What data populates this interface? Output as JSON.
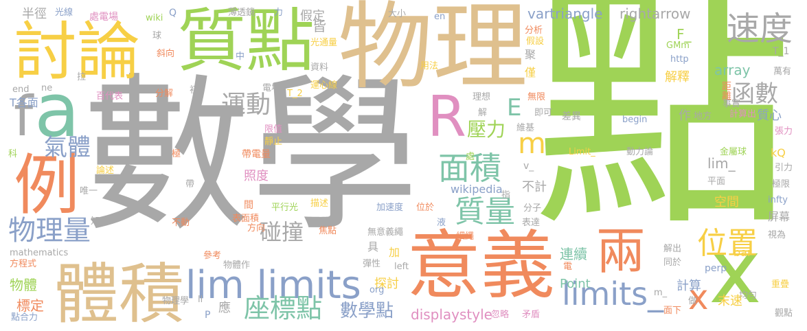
{
  "words": [
    {
      "text": "點",
      "color": "#9fd356"
    },
    {
      "text": "數學",
      "color": "#a8a8a8"
    },
    {
      "text": "物理",
      "color": "#dfc08e"
    },
    {
      "text": "質點",
      "color": "#9fd356"
    },
    {
      "text": "討論",
      "color": "#f7cf45"
    },
    {
      "text": "意義",
      "color": "#f08a5d"
    },
    {
      "text": "體積",
      "color": "#dfc08e"
    },
    {
      "text": "lim limits",
      "color": "#8aa0c8"
    },
    {
      "text": "例",
      "color": "#f08a5d"
    },
    {
      "text": "a",
      "color": "#7ec4a8"
    },
    {
      "text": "f",
      "color": "#a8a8a8"
    },
    {
      "text": "R",
      "color": "#e08fc0"
    },
    {
      "text": "x",
      "color": "#9fd356"
    },
    {
      "text": "兩",
      "color": "#f08a5d"
    },
    {
      "text": "速度",
      "color": "#a8a8a8"
    },
    {
      "text": "limits_",
      "color": "#8aa0c8"
    },
    {
      "text": "位置",
      "color": "#f7cf45"
    },
    {
      "text": "座標點",
      "color": "#7ec4a8"
    },
    {
      "text": "物理量",
      "color": "#8aa0c8"
    },
    {
      "text": "面積",
      "color": "#7ec4a8"
    },
    {
      "text": "質量",
      "color": "#7ec4a8"
    },
    {
      "text": "函數",
      "color": "#a8a8a8"
    },
    {
      "text": "運動",
      "color": "#a8a8a8"
    },
    {
      "text": "氣體",
      "color": "#8aa0c8"
    },
    {
      "text": "m",
      "color": "#f7cf45"
    },
    {
      "text": "E",
      "color": "#7ec4a8"
    },
    {
      "text": "x",
      "color": "#f08a5d"
    },
    {
      "text": "碰撞",
      "color": "#a8a8a8"
    },
    {
      "text": "壓力",
      "color": "#9fd356"
    },
    {
      "text": "數學點",
      "color": "#8aa0c8"
    },
    {
      "text": "displaystyle",
      "color": "#e08fc0"
    },
    {
      "text": "vartriangle",
      "color": "#8aa0c8"
    },
    {
      "text": "rightarrow",
      "color": "#a8a8a8"
    },
    {
      "text": "array",
      "color": "#7ec4a8"
    },
    {
      "text": "物體",
      "color": "#9fd356"
    },
    {
      "text": "標定",
      "color": "#f08a5d"
    },
    {
      "text": "連續",
      "color": "#7ec4a8"
    },
    {
      "text": "Point",
      "color": "#7ec4a8"
    },
    {
      "text": "假定",
      "color": "#a8a8a8"
    },
    {
      "text": "解釋",
      "color": "#f7cf45"
    },
    {
      "text": "空間",
      "color": "#f7cf45"
    },
    {
      "text": "照度",
      "color": "#e08fc0"
    },
    {
      "text": "計算",
      "color": "#8aa0c8"
    },
    {
      "text": "不計",
      "color": "#a8a8a8"
    },
    {
      "text": "wikipedia",
      "color": "#8aa0c8"
    },
    {
      "text": "lim_",
      "color": "#a8a8a8"
    },
    {
      "text": "探討",
      "color": "#f7cf45"
    },
    {
      "text": "半徑",
      "color": "#a8a8a8"
    },
    {
      "text": "光線",
      "color": "#8aa0c8"
    },
    {
      "text": "處電場",
      "color": "#e08fc0"
    },
    {
      "text": "wiki",
      "color": "#9fd356"
    },
    {
      "text": "Q",
      "color": "#8aa0c8"
    },
    {
      "text": "薄透鏡",
      "color": "#a8a8a8"
    },
    {
      "text": "力",
      "color": "#8aa0c8"
    },
    {
      "text": "大小",
      "color": "#a8a8a8"
    },
    {
      "text": "en",
      "color": "#8aa0c8"
    },
    {
      "text": "皆",
      "color": "#a8a8a8"
    },
    {
      "text": "F_",
      "color": "#9fd356"
    },
    {
      "text": "GMm",
      "color": "#9fd356"
    },
    {
      "text": "http",
      "color": "#8aa0c8"
    },
    {
      "text": "T_1",
      "color": "#a8a8a8"
    },
    {
      "text": "萬有",
      "color": "#a8a8a8"
    },
    {
      "text": "距離",
      "color": "#f08a5d"
    },
    {
      "text": "事實",
      "color": "#a8a8a8"
    },
    {
      "text": "計算出",
      "color": "#e08fc0"
    },
    {
      "text": "張力",
      "color": "#e08fc0"
    },
    {
      "text": "質心",
      "color": "#8aa0c8"
    },
    {
      "text": "地方",
      "color": "#a8a8a8"
    },
    {
      "text": "kQ",
      "color": "#f7cf45"
    },
    {
      "text": "引力",
      "color": "#a8a8a8"
    },
    {
      "text": "極限",
      "color": "#a8a8a8"
    },
    {
      "text": "infty",
      "color": "#8aa0c8"
    },
    {
      "text": "屏幕",
      "color": "#a8a8a8"
    },
    {
      "text": "視為",
      "color": "#a8a8a8"
    },
    {
      "text": "均勻",
      "color": "#a8a8a8"
    },
    {
      "text": "重疊",
      "color": "#f7cf45"
    },
    {
      "text": "觀點",
      "color": "#a8a8a8"
    },
    {
      "text": "末速",
      "color": "#f7cf45"
    },
    {
      "text": "bar",
      "color": "#f7cf45"
    },
    {
      "text": "perp",
      "color": "#8aa0c8"
    },
    {
      "text": "同於",
      "color": "#a8a8a8"
    },
    {
      "text": "解出",
      "color": "#a8a8a8"
    },
    {
      "text": "做",
      "color": "#a8a8a8"
    },
    {
      "text": "面下",
      "color": "#f08a5d"
    },
    {
      "text": "m_",
      "color": "#a8a8a8"
    },
    {
      "text": "電",
      "color": "#f08a5d"
    },
    {
      "text": "矛盾",
      "color": "#e08fc0"
    },
    {
      "text": "忽略",
      "color": "#e08fc0"
    },
    {
      "text": "表達",
      "color": "#a8a8a8"
    },
    {
      "text": "分子",
      "color": "#a8a8a8"
    },
    {
      "text": "指",
      "color": "#a8a8a8"
    },
    {
      "text": "平面",
      "color": "#a8a8a8"
    },
    {
      "text": "動力論",
      "color": "#a8a8a8"
    },
    {
      "text": "金屬球",
      "color": "#9fd356"
    },
    {
      "text": "Limit_",
      "color": "#f7cf45"
    },
    {
      "text": "v_",
      "color": "#a8a8a8"
    },
    {
      "text": "處",
      "color": "#9fd356"
    },
    {
      "text": "解",
      "color": "#a8a8a8"
    },
    {
      "text": "理想",
      "color": "#a8a8a8"
    },
    {
      "text": "無限",
      "color": "#f08a5d"
    },
    {
      "text": "即可",
      "color": "#a8a8a8"
    },
    {
      "text": "差異",
      "color": "#a8a8a8"
    },
    {
      "text": "維基",
      "color": "#a8a8a8"
    },
    {
      "text": "begin",
      "color": "#8aa0c8"
    },
    {
      "text": "作",
      "color": "#a8a8a8"
    },
    {
      "text": "聚",
      "color": "#a8a8a8"
    },
    {
      "text": "僅",
      "color": "#f7cf45"
    },
    {
      "text": "分析",
      "color": "#f08a5d"
    },
    {
      "text": "假設",
      "color": "#f7cf45"
    },
    {
      "text": "用法",
      "color": "#f7cf45"
    },
    {
      "text": "光通量",
      "color": "#f7cf45"
    },
    {
      "text": "資料",
      "color": "#a8a8a8"
    },
    {
      "text": "運心線",
      "color": "#f7cf45"
    },
    {
      "text": "電場",
      "color": "#a8a8a8"
    },
    {
      "text": "T_2",
      "color": "#f7cf45"
    },
    {
      "text": "中",
      "color": "#8aa0c8"
    },
    {
      "text": "球",
      "color": "#a8a8a8"
    },
    {
      "text": "斜向",
      "color": "#f08a5d"
    },
    {
      "text": "拉",
      "color": "#a8a8a8"
    },
    {
      "text": "百代表",
      "color": "#e08fc0"
    },
    {
      "text": "分解",
      "color": "#f08a5d"
    },
    {
      "text": "初",
      "color": "#a8a8a8"
    },
    {
      "text": "T各面",
      "color": "#8aa0c8"
    },
    {
      "text": "end",
      "color": "#a8a8a8"
    },
    {
      "text": "ne",
      "color": "#a8a8a8"
    },
    {
      "text": "限值",
      "color": "#e08fc0"
    },
    {
      "text": "靜止",
      "color": "#f7cf45"
    },
    {
      "text": "帶電量",
      "color": "#f08a5d"
    },
    {
      "text": "極",
      "color": "#f08a5d"
    },
    {
      "text": "科",
      "color": "#9fd356"
    },
    {
      "text": "論述",
      "color": "#f7cf45"
    },
    {
      "text": "唯一",
      "color": "#a8a8a8"
    },
    {
      "text": "帶",
      "color": "#a8a8a8"
    },
    {
      "text": "間",
      "color": "#f08a5d"
    },
    {
      "text": "平行光",
      "color": "#9fd356"
    },
    {
      "text": "描述",
      "color": "#f7cf45"
    },
    {
      "text": "加速度",
      "color": "#8aa0c8"
    },
    {
      "text": "位於",
      "color": "#f08a5d"
    },
    {
      "text": "液",
      "color": "#8aa0c8"
    },
    {
      "text": "不動",
      "color": "#f08a5d"
    },
    {
      "text": "表面積",
      "color": "#f08a5d"
    },
    {
      "text": "方向",
      "color": "#f08a5d"
    },
    {
      "text": "知",
      "color": "#a8a8a8"
    },
    {
      "text": "焦點",
      "color": "#f08a5d"
    },
    {
      "text": "無意義繩",
      "color": "#a8a8a8"
    },
    {
      "text": "細繩",
      "color": "#f08a5d"
    },
    {
      "text": "具",
      "color": "#a8a8a8"
    },
    {
      "text": "加",
      "color": "#f7cf45"
    },
    {
      "text": "彈性",
      "color": "#a8a8a8"
    },
    {
      "text": "left",
      "color": "#a8a8a8"
    },
    {
      "text": "org",
      "color": "#8aa0c8"
    },
    {
      "text": "mathematics",
      "color": "#a8a8a8"
    },
    {
      "text": "方程式",
      "color": "#f08a5d"
    },
    {
      "text": "參考",
      "color": "#f08a5d"
    },
    {
      "text": "物體作",
      "color": "#a8a8a8"
    },
    {
      "text": "物理學",
      "color": "#a8a8a8"
    },
    {
      "text": "ll",
      "color": "#a8a8a8"
    },
    {
      "text": "應",
      "color": "#a8a8a8"
    },
    {
      "text": "P",
      "color": "#8aa0c8"
    },
    {
      "text": "點合力",
      "color": "#8aa0c8"
    }
  ]
}
